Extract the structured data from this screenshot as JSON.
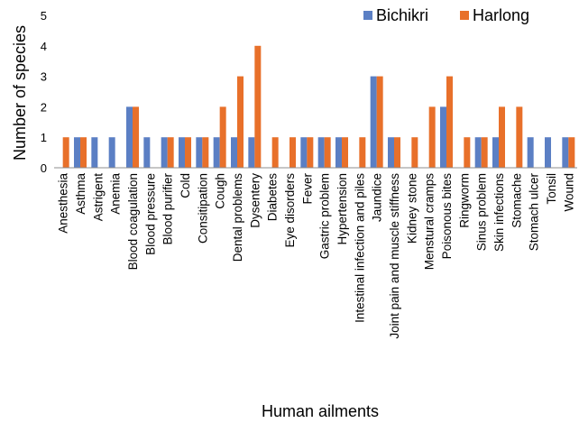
{
  "chart_data": {
    "type": "bar",
    "xlabel": "Human ailments",
    "ylabel": "Number of species",
    "ylim": [
      0,
      5
    ],
    "yticks": [
      0,
      1,
      2,
      3,
      4,
      5
    ],
    "grid": false,
    "legend_position": "top-right",
    "categories": [
      "Anesthesia",
      "Asthma",
      "Astrigent",
      "Anemia",
      "Blood coagulation",
      "Blood pressure",
      "Blood purifier",
      "Cold",
      "Consitipation",
      "Cough",
      "Dental problems",
      "Dysentery",
      "Diabetes",
      "Eye disorders",
      "Fever",
      "Gastric problem",
      "Hypertension",
      "Intestinal infection and piles",
      "Jaundice",
      "Joint pain and muscle stiffness",
      "Kidney stone",
      "Menstural cramps",
      "Poisonous bites",
      "Ringworm",
      "Sinus problem",
      "Skin infections",
      "Stomache",
      "Stomach ulcer",
      "Tonsil",
      "Wound"
    ],
    "series": [
      {
        "name": "Bichikri",
        "color": "#5b7fc4",
        "values": [
          0,
          1,
          1,
          1,
          2,
          1,
          1,
          1,
          1,
          1,
          1,
          1,
          0,
          0,
          1,
          1,
          1,
          0,
          3,
          1,
          0,
          0,
          2,
          0,
          1,
          1,
          0,
          1,
          1,
          1
        ]
      },
      {
        "name": "Harlong",
        "color": "#e8702a",
        "values": [
          1,
          1,
          0,
          0,
          2,
          0,
          1,
          1,
          1,
          2,
          3,
          4,
          1,
          1,
          1,
          1,
          1,
          1,
          3,
          1,
          1,
          2,
          3,
          1,
          1,
          2,
          2,
          0,
          0,
          1
        ]
      }
    ]
  }
}
